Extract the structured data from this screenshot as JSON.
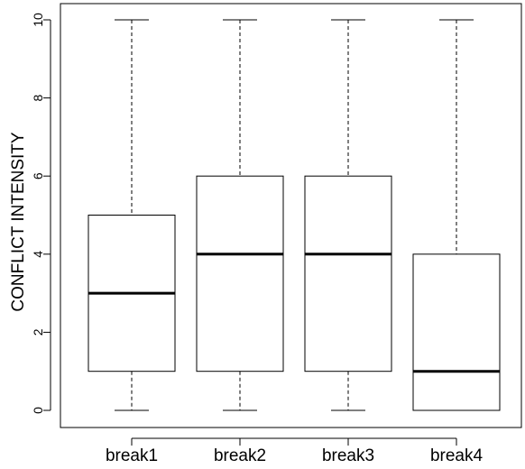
{
  "chart_data": {
    "type": "box",
    "title": "",
    "xlabel": "",
    "ylabel": "CONFLICT INTENSITY",
    "ylim": [
      0,
      10
    ],
    "yticks": [
      0,
      2,
      4,
      6,
      8,
      10
    ],
    "categories": [
      "break1",
      "break2",
      "break3",
      "break4"
    ],
    "boxes": [
      {
        "name": "break1",
        "min": 0,
        "q1": 1,
        "median": 3,
        "q3": 5,
        "max": 10
      },
      {
        "name": "break2",
        "min": 0,
        "q1": 1,
        "median": 4,
        "q3": 6,
        "max": 10
      },
      {
        "name": "break3",
        "min": 0,
        "q1": 1,
        "median": 4,
        "q3": 6,
        "max": 10
      },
      {
        "name": "break4",
        "min": 0,
        "q1": 0,
        "median": 1,
        "q3": 4,
        "max": 10
      }
    ],
    "grid": false,
    "colors": {
      "stroke": "#000000",
      "fill": "#ffffff"
    }
  }
}
